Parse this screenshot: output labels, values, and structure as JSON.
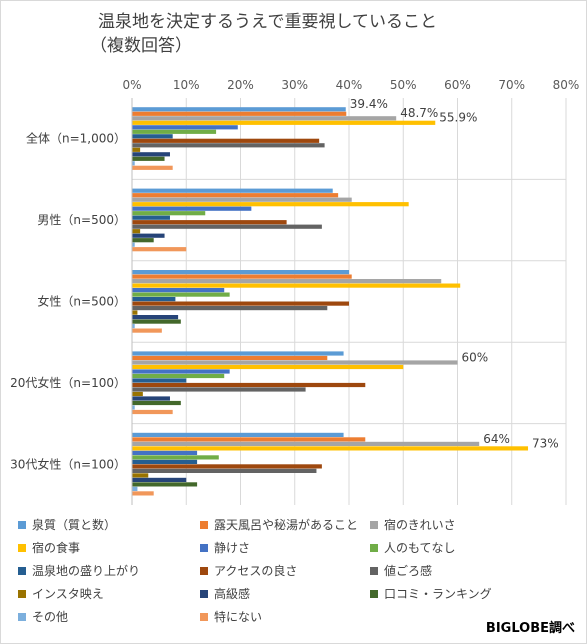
{
  "chart_data": {
    "type": "bar",
    "orientation": "horizontal",
    "title_lines": [
      "温泉地を決定するうえで重要視していること",
      "（複数回答）"
    ],
    "x_ticks": [
      "0%",
      "10%",
      "20%",
      "30%",
      "40%",
      "50%",
      "60%",
      "70%",
      "80%"
    ],
    "xlim": [
      0,
      80
    ],
    "grid": true,
    "legend_position": "bottom",
    "categories": [
      "全体（n=1,000）",
      "男性（n=500）",
      "女性（n=500）",
      "20代女性（n=100）",
      "30代女性（n=100）"
    ],
    "series": [
      {
        "name": "泉質（質と数）",
        "color": "#5B9BD5",
        "values": [
          39.4,
          37,
          40,
          39,
          39
        ]
      },
      {
        "name": "露天風呂や秘湯があること",
        "color": "#ED7D31",
        "values": [
          39.5,
          38,
          40.5,
          36,
          43
        ]
      },
      {
        "name": "宿のきれいさ",
        "color": "#A5A5A5",
        "values": [
          48.7,
          40.5,
          57,
          60,
          64
        ]
      },
      {
        "name": "宿の食事",
        "color": "#FFC000",
        "values": [
          55.9,
          51,
          60.5,
          50,
          73
        ]
      },
      {
        "name": "静けさ",
        "color": "#4472C4",
        "values": [
          19.5,
          22,
          17,
          18,
          12
        ]
      },
      {
        "name": "人のもてなし",
        "color": "#70AD47",
        "values": [
          15.5,
          13.5,
          18,
          17,
          16
        ]
      },
      {
        "name": "温泉地の盛り上がり",
        "color": "#255E91",
        "values": [
          7.5,
          7,
          8,
          10,
          12
        ]
      },
      {
        "name": "アクセスの良さ",
        "color": "#9E480E",
        "values": [
          34.5,
          28.5,
          40,
          43,
          35
        ]
      },
      {
        "name": "値ごろ感",
        "color": "#636363",
        "values": [
          35.5,
          35,
          36,
          32,
          34
        ]
      },
      {
        "name": "インスタ映え",
        "color": "#997300",
        "values": [
          1.5,
          1.5,
          1,
          2,
          3
        ]
      },
      {
        "name": "高級感",
        "color": "#264478",
        "values": [
          7,
          6,
          8.5,
          7,
          10
        ]
      },
      {
        "name": "口コミ・ランキング",
        "color": "#43682B",
        "values": [
          6,
          4,
          9,
          9,
          12
        ]
      },
      {
        "name": "その他",
        "color": "#7CAFDD",
        "values": [
          0.5,
          0.5,
          0.5,
          0.5,
          1
        ]
      },
      {
        "name": "特にない",
        "color": "#F1975A",
        "values": [
          7.5,
          10,
          5.5,
          7.5,
          4
        ]
      }
    ],
    "data_labels": [
      {
        "category": 0,
        "series": 0,
        "text": "39.4%"
      },
      {
        "category": 0,
        "series": 2,
        "text": "48.7%"
      },
      {
        "category": 0,
        "series": 3,
        "text": "55.9%"
      },
      {
        "category": 3,
        "series": 2,
        "text": "60%"
      },
      {
        "category": 4,
        "series": 2,
        "text": "64%"
      },
      {
        "category": 4,
        "series": 3,
        "text": "73%"
      }
    ]
  },
  "source_text": "BIGLOBE調べ"
}
